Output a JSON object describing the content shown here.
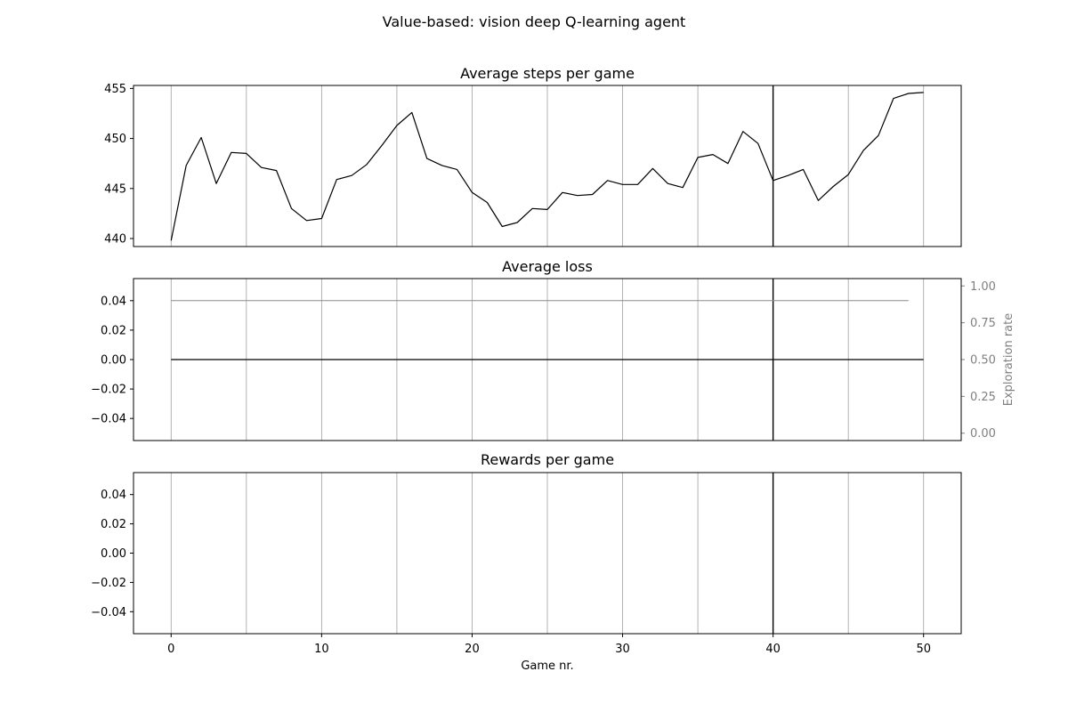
{
  "suptitle": "Value-based: vision deep Q-learning agent",
  "xlabel": "Game nr.",
  "x_ticks": [
    0,
    10,
    20,
    30,
    40,
    50
  ],
  "xlim": [
    -2.5,
    52.5
  ],
  "marker_x": 40,
  "colors": {
    "series": "#000000",
    "grid": "#a0a0a0",
    "exploration": "#8c8c8c",
    "right_axis": "#808080",
    "marker": "#000000"
  },
  "chart_data": [
    {
      "type": "line",
      "title": "Average steps per game",
      "xlabel": "",
      "ylabel": "",
      "ylim": [
        439.2,
        455.3
      ],
      "y_ticks": [
        "440",
        "445",
        "450",
        "455"
      ],
      "y_tick_values": [
        440,
        445,
        450,
        455
      ],
      "grid": "vertical",
      "series": [
        {
          "x": [
            0,
            1,
            2,
            3,
            4,
            5,
            6,
            7,
            8,
            9,
            10,
            11,
            12,
            13,
            14,
            15,
            16,
            17,
            18,
            19,
            20,
            21,
            22,
            23,
            24,
            25,
            26,
            27,
            28,
            29,
            30,
            31,
            32,
            33,
            34,
            35,
            36,
            37,
            38,
            39,
            40,
            41,
            42,
            43,
            44,
            45,
            46,
            47,
            48,
            49,
            50
          ],
          "values": [
            439.8,
            447.3,
            450.1,
            445.5,
            448.6,
            448.5,
            447.1,
            446.8,
            443.0,
            441.8,
            442.0,
            445.9,
            446.3,
            447.4,
            449.3,
            451.3,
            452.6,
            448.0,
            447.3,
            446.9,
            444.6,
            443.6,
            441.2,
            441.6,
            443.0,
            442.9,
            444.6,
            444.3,
            444.4,
            445.8,
            445.4,
            445.4,
            447.0,
            445.5,
            445.1,
            448.1,
            448.4,
            447.5,
            450.7,
            449.5,
            445.8,
            446.3,
            446.9,
            443.8,
            445.2,
            446.4,
            448.8,
            450.3,
            454.0,
            454.5,
            454.6
          ]
        }
      ]
    },
    {
      "type": "line",
      "title": "Average loss",
      "xlabel": "",
      "ylabel": "",
      "ylim": [
        -0.055,
        0.055
      ],
      "y_ticks": [
        "0.04",
        "0.02",
        "0.00",
        "−0.02",
        "−0.04"
      ],
      "y_tick_values": [
        0.04,
        0.02,
        0.0,
        -0.02,
        -0.04
      ],
      "grid": "vertical",
      "series": [
        {
          "x": [
            0,
            50
          ],
          "values": [
            0.0,
            0.0
          ]
        }
      ],
      "secondary_axis": {
        "label": "Exploration rate",
        "ylim": [
          -0.05,
          1.05
        ],
        "y_ticks": [
          "1.00",
          "0.75",
          "0.50",
          "0.25",
          "0.00"
        ],
        "y_tick_values": [
          1.0,
          0.75,
          0.5,
          0.25,
          0.0
        ],
        "series": [
          {
            "x": [
              0,
              49
            ],
            "values": [
              0.9,
              0.9
            ]
          }
        ]
      }
    },
    {
      "type": "line",
      "title": "Rewards per game",
      "xlabel": "Game nr.",
      "ylabel": "",
      "ylim": [
        -0.055,
        0.055
      ],
      "y_ticks": [
        "0.04",
        "0.02",
        "0.00",
        "−0.02",
        "−0.04"
      ],
      "y_tick_values": [
        0.04,
        0.02,
        0.0,
        -0.02,
        -0.04
      ],
      "grid": "vertical",
      "series": []
    }
  ]
}
